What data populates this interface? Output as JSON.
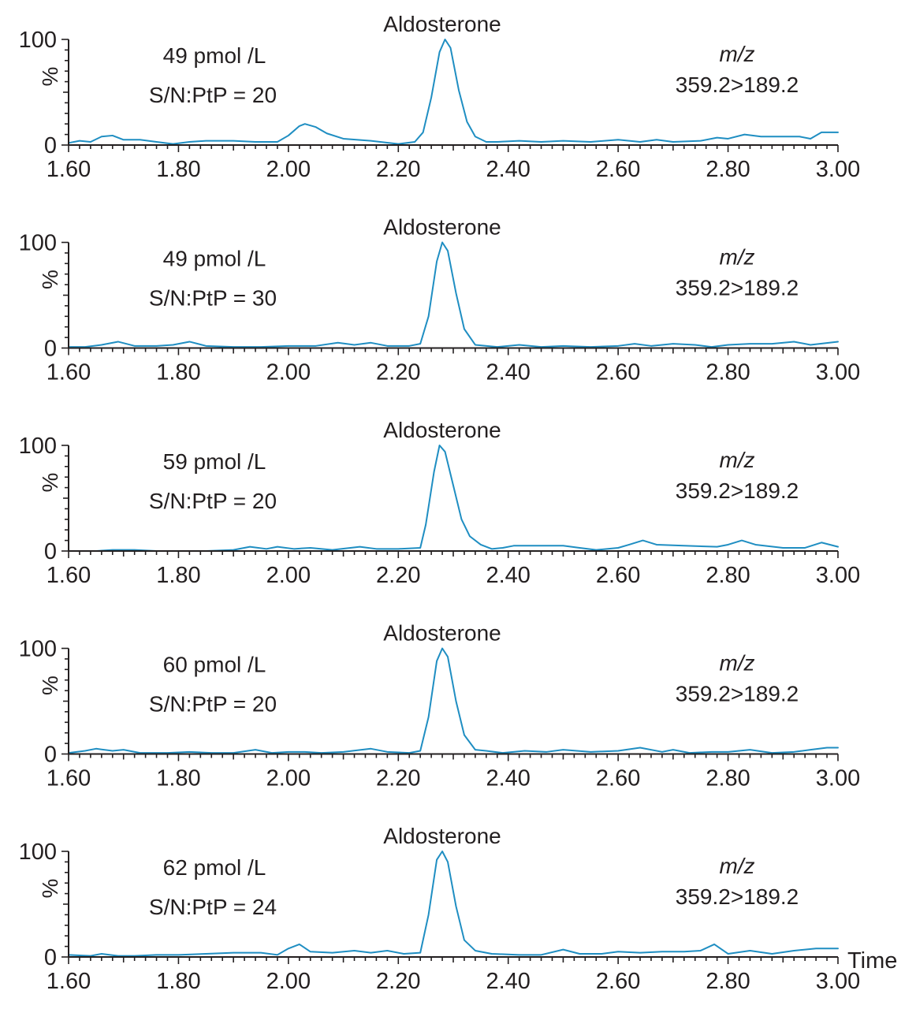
{
  "chart_data": [
    {
      "type": "line",
      "title": "Aldosterone",
      "annotations": {
        "concentration": "49 pmol /L",
        "signal_to_noise": "S/N:PtP = 20",
        "mz_label": "m/z",
        "mz_value": "359.2>189.2"
      },
      "ylabel": "%",
      "xlabel": "",
      "xlim": [
        1.6,
        3.0
      ],
      "ylim": [
        0,
        100
      ],
      "x_ticks": [
        "1.60",
        "1.80",
        "2.00",
        "2.20",
        "2.40",
        "2.60",
        "2.80",
        "3.00"
      ],
      "y_ticks": [
        "0",
        "100"
      ],
      "series": [
        {
          "points": [
            [
              1.6,
              2
            ],
            [
              1.62,
              4
            ],
            [
              1.64,
              3
            ],
            [
              1.66,
              8
            ],
            [
              1.68,
              9
            ],
            [
              1.7,
              5
            ],
            [
              1.73,
              5
            ],
            [
              1.76,
              3
            ],
            [
              1.79,
              1
            ],
            [
              1.82,
              3
            ],
            [
              1.85,
              4
            ],
            [
              1.9,
              4
            ],
            [
              1.94,
              3
            ],
            [
              1.98,
              3
            ],
            [
              2.0,
              9
            ],
            [
              2.02,
              18
            ],
            [
              2.03,
              20
            ],
            [
              2.05,
              17
            ],
            [
              2.07,
              11
            ],
            [
              2.1,
              6
            ],
            [
              2.15,
              4
            ],
            [
              2.2,
              1
            ],
            [
              2.23,
              3
            ],
            [
              2.245,
              12
            ],
            [
              2.26,
              45
            ],
            [
              2.275,
              88
            ],
            [
              2.285,
              100
            ],
            [
              2.295,
              92
            ],
            [
              2.31,
              52
            ],
            [
              2.325,
              22
            ],
            [
              2.34,
              8
            ],
            [
              2.36,
              3
            ],
            [
              2.38,
              3
            ],
            [
              2.42,
              4
            ],
            [
              2.46,
              3
            ],
            [
              2.5,
              4
            ],
            [
              2.55,
              3
            ],
            [
              2.6,
              5
            ],
            [
              2.64,
              3
            ],
            [
              2.67,
              5
            ],
            [
              2.7,
              3
            ],
            [
              2.75,
              4
            ],
            [
              2.78,
              7
            ],
            [
              2.8,
              6
            ],
            [
              2.83,
              10
            ],
            [
              2.86,
              8
            ],
            [
              2.9,
              8
            ],
            [
              2.93,
              8
            ],
            [
              2.95,
              6
            ],
            [
              2.97,
              12
            ],
            [
              3.0,
              12
            ]
          ]
        }
      ]
    },
    {
      "type": "line",
      "title": "Aldosterone",
      "annotations": {
        "concentration": "49 pmol /L",
        "signal_to_noise": "S/N:PtP = 30",
        "mz_label": "m/z",
        "mz_value": "359.2>189.2"
      },
      "ylabel": "%",
      "xlabel": "",
      "xlim": [
        1.6,
        3.0
      ],
      "ylim": [
        0,
        100
      ],
      "x_ticks": [
        "1.60",
        "1.80",
        "2.00",
        "2.20",
        "2.40",
        "2.60",
        "2.80",
        "3.00"
      ],
      "y_ticks": [
        "0",
        "100"
      ],
      "series": [
        {
          "points": [
            [
              1.6,
              1
            ],
            [
              1.63,
              1
            ],
            [
              1.66,
              3
            ],
            [
              1.69,
              6
            ],
            [
              1.72,
              2
            ],
            [
              1.76,
              2
            ],
            [
              1.79,
              3
            ],
            [
              1.82,
              6
            ],
            [
              1.85,
              2
            ],
            [
              1.9,
              1
            ],
            [
              1.95,
              1
            ],
            [
              2.0,
              2
            ],
            [
              2.05,
              2
            ],
            [
              2.09,
              5
            ],
            [
              2.12,
              3
            ],
            [
              2.15,
              5
            ],
            [
              2.18,
              2
            ],
            [
              2.22,
              2
            ],
            [
              2.24,
              4
            ],
            [
              2.255,
              30
            ],
            [
              2.27,
              82
            ],
            [
              2.28,
              100
            ],
            [
              2.29,
              92
            ],
            [
              2.305,
              52
            ],
            [
              2.32,
              18
            ],
            [
              2.34,
              3
            ],
            [
              2.38,
              1
            ],
            [
              2.42,
              3
            ],
            [
              2.46,
              1
            ],
            [
              2.5,
              2
            ],
            [
              2.55,
              1
            ],
            [
              2.6,
              2
            ],
            [
              2.63,
              4
            ],
            [
              2.66,
              2
            ],
            [
              2.7,
              4
            ],
            [
              2.74,
              3
            ],
            [
              2.77,
              1
            ],
            [
              2.8,
              3
            ],
            [
              2.84,
              4
            ],
            [
              2.88,
              4
            ],
            [
              2.92,
              6
            ],
            [
              2.95,
              3
            ],
            [
              3.0,
              6
            ]
          ]
        }
      ]
    },
    {
      "type": "line",
      "title": "Aldosterone",
      "annotations": {
        "concentration": "59 pmol /L",
        "signal_to_noise": "S/N:PtP = 20",
        "mz_label": "m/z",
        "mz_value": "359.2>189.2"
      },
      "ylabel": "%",
      "xlabel": "",
      "xlim": [
        1.6,
        3.0
      ],
      "ylim": [
        0,
        100
      ],
      "x_ticks": [
        "1.60",
        "1.80",
        "2.00",
        "2.20",
        "2.40",
        "2.60",
        "2.80",
        "3.00"
      ],
      "y_ticks": [
        "0",
        "100"
      ],
      "series": [
        {
          "points": [
            [
              1.6,
              0
            ],
            [
              1.65,
              0
            ],
            [
              1.68,
              1
            ],
            [
              1.72,
              1
            ],
            [
              1.76,
              0
            ],
            [
              1.8,
              0
            ],
            [
              1.85,
              0
            ],
            [
              1.9,
              1
            ],
            [
              1.93,
              4
            ],
            [
              1.96,
              2
            ],
            [
              1.98,
              4
            ],
            [
              2.01,
              2
            ],
            [
              2.04,
              3
            ],
            [
              2.08,
              1
            ],
            [
              2.13,
              4
            ],
            [
              2.16,
              2
            ],
            [
              2.2,
              2
            ],
            [
              2.24,
              3
            ],
            [
              2.25,
              25
            ],
            [
              2.265,
              75
            ],
            [
              2.275,
              100
            ],
            [
              2.285,
              94
            ],
            [
              2.3,
              62
            ],
            [
              2.315,
              30
            ],
            [
              2.33,
              14
            ],
            [
              2.35,
              6
            ],
            [
              2.37,
              2
            ],
            [
              2.39,
              3
            ],
            [
              2.41,
              5
            ],
            [
              2.45,
              5
            ],
            [
              2.5,
              5
            ],
            [
              2.53,
              3
            ],
            [
              2.56,
              1
            ],
            [
              2.6,
              3
            ],
            [
              2.62,
              6
            ],
            [
              2.645,
              10
            ],
            [
              2.67,
              6
            ],
            [
              2.72,
              5
            ],
            [
              2.78,
              4
            ],
            [
              2.8,
              6
            ],
            [
              2.825,
              10
            ],
            [
              2.85,
              6
            ],
            [
              2.9,
              3
            ],
            [
              2.94,
              3
            ],
            [
              2.97,
              8
            ],
            [
              3.0,
              4
            ]
          ]
        }
      ]
    },
    {
      "type": "line",
      "title": "Aldosterone",
      "annotations": {
        "concentration": "60 pmol /L",
        "signal_to_noise": "S/N:PtP = 20",
        "mz_label": "m/z",
        "mz_value": "359.2>189.2"
      },
      "ylabel": "%",
      "xlabel": "",
      "xlim": [
        1.6,
        3.0
      ],
      "ylim": [
        0,
        100
      ],
      "x_ticks": [
        "1.60",
        "1.80",
        "2.00",
        "2.20",
        "2.40",
        "2.60",
        "2.80",
        "3.00"
      ],
      "y_ticks": [
        "0",
        "100"
      ],
      "series": [
        {
          "points": [
            [
              1.6,
              1
            ],
            [
              1.63,
              3
            ],
            [
              1.65,
              5
            ],
            [
              1.68,
              3
            ],
            [
              1.7,
              4
            ],
            [
              1.73,
              1
            ],
            [
              1.78,
              1
            ],
            [
              1.82,
              2
            ],
            [
              1.86,
              1
            ],
            [
              1.9,
              1
            ],
            [
              1.94,
              4
            ],
            [
              1.97,
              1
            ],
            [
              2.0,
              2
            ],
            [
              2.03,
              2
            ],
            [
              2.06,
              1
            ],
            [
              2.1,
              2
            ],
            [
              2.15,
              5
            ],
            [
              2.18,
              2
            ],
            [
              2.22,
              1
            ],
            [
              2.24,
              3
            ],
            [
              2.255,
              35
            ],
            [
              2.27,
              88
            ],
            [
              2.28,
              100
            ],
            [
              2.29,
              92
            ],
            [
              2.305,
              50
            ],
            [
              2.32,
              18
            ],
            [
              2.34,
              4
            ],
            [
              2.36,
              3
            ],
            [
              2.39,
              1
            ],
            [
              2.43,
              3
            ],
            [
              2.47,
              2
            ],
            [
              2.5,
              4
            ],
            [
              2.55,
              2
            ],
            [
              2.6,
              3
            ],
            [
              2.64,
              6
            ],
            [
              2.68,
              2
            ],
            [
              2.7,
              4
            ],
            [
              2.73,
              1
            ],
            [
              2.77,
              2
            ],
            [
              2.8,
              2
            ],
            [
              2.84,
              4
            ],
            [
              2.88,
              1
            ],
            [
              2.92,
              2
            ],
            [
              2.95,
              4
            ],
            [
              2.98,
              6
            ],
            [
              3.0,
              6
            ]
          ]
        }
      ]
    },
    {
      "type": "line",
      "title": "Aldosterone",
      "annotations": {
        "concentration": "62 pmol /L",
        "signal_to_noise": "S/N:PtP = 24",
        "mz_label": "m/z",
        "mz_value": "359.2>189.2"
      },
      "ylabel": "%",
      "xlabel": "Time",
      "xlim": [
        1.6,
        3.0
      ],
      "ylim": [
        0,
        100
      ],
      "x_ticks": [
        "1.60",
        "1.80",
        "2.00",
        "2.20",
        "2.40",
        "2.60",
        "2.80",
        "3.00"
      ],
      "y_ticks": [
        "0",
        "100"
      ],
      "series": [
        {
          "points": [
            [
              1.6,
              2
            ],
            [
              1.64,
              1
            ],
            [
              1.66,
              3
            ],
            [
              1.69,
              1
            ],
            [
              1.72,
              1
            ],
            [
              1.76,
              2
            ],
            [
              1.8,
              2
            ],
            [
              1.85,
              3
            ],
            [
              1.9,
              4
            ],
            [
              1.95,
              4
            ],
            [
              1.98,
              2
            ],
            [
              2.0,
              8
            ],
            [
              2.02,
              12
            ],
            [
              2.04,
              5
            ],
            [
              2.08,
              4
            ],
            [
              2.12,
              6
            ],
            [
              2.15,
              4
            ],
            [
              2.18,
              6
            ],
            [
              2.21,
              3
            ],
            [
              2.24,
              4
            ],
            [
              2.255,
              40
            ],
            [
              2.27,
              92
            ],
            [
              2.28,
              100
            ],
            [
              2.29,
              90
            ],
            [
              2.305,
              48
            ],
            [
              2.32,
              16
            ],
            [
              2.34,
              6
            ],
            [
              2.37,
              3
            ],
            [
              2.42,
              2
            ],
            [
              2.46,
              2
            ],
            [
              2.5,
              7
            ],
            [
              2.53,
              3
            ],
            [
              2.57,
              3
            ],
            [
              2.6,
              5
            ],
            [
              2.64,
              4
            ],
            [
              2.68,
              5
            ],
            [
              2.72,
              5
            ],
            [
              2.75,
              6
            ],
            [
              2.775,
              12
            ],
            [
              2.8,
              3
            ],
            [
              2.84,
              6
            ],
            [
              2.88,
              3
            ],
            [
              2.92,
              6
            ],
            [
              2.96,
              8
            ],
            [
              3.0,
              8
            ]
          ]
        }
      ]
    }
  ],
  "colors": {
    "trace": "#1f8ec2",
    "axis": "#231f20",
    "text": "#231f20"
  }
}
